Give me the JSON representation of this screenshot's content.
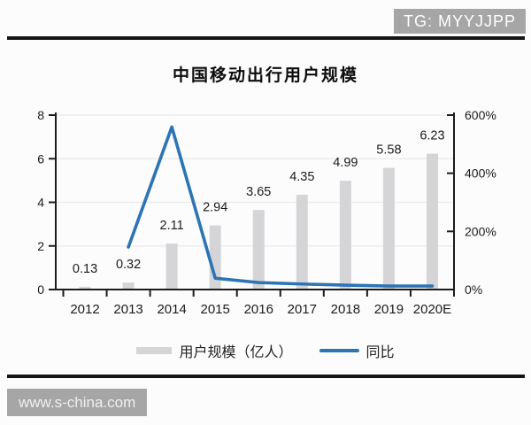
{
  "watermarks": {
    "header_badge": "TG: MYYJJPP",
    "footer_badge": "www.s-china.com",
    "badge_color": "#a6a6a6"
  },
  "chart_data": {
    "type": "bar",
    "title": "中国移动出行用户规模",
    "categories": [
      "2012",
      "2013",
      "2014",
      "2015",
      "2016",
      "2017",
      "2018",
      "2019",
      "2020E"
    ],
    "series": [
      {
        "name": "用户规模（亿人）",
        "type": "bar",
        "axis": "left",
        "color": "#d5d5d8",
        "values": [
          0.13,
          0.32,
          2.11,
          2.94,
          3.65,
          4.35,
          4.99,
          5.58,
          6.23
        ],
        "labels": [
          "0.13",
          "0.32",
          "2.11",
          "2.94",
          "3.65",
          "4.35",
          "4.99",
          "5.58",
          "6.23"
        ]
      },
      {
        "name": "同比",
        "type": "line",
        "axis": "right",
        "color": "#2d74b5",
        "unit": "%",
        "values": [
          null,
          146,
          559,
          39,
          24,
          19,
          15,
          12,
          12
        ]
      }
    ],
    "left_axis": {
      "min": 0,
      "max": 8,
      "ticks": [
        0,
        2,
        4,
        6,
        8
      ]
    },
    "right_axis": {
      "min": 0,
      "max": 600,
      "tick_values": [
        0,
        200,
        400,
        600
      ],
      "tick_labels": [
        "0%",
        "200%",
        "400%",
        "600%"
      ],
      "unit": "%"
    },
    "grid": true,
    "legend_position": "bottom"
  }
}
